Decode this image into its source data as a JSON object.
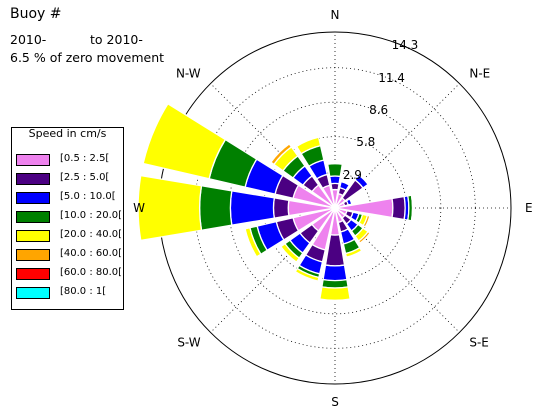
{
  "header": {
    "title": "Buoy #",
    "period_line": "2010-           to 2010-",
    "zero_movement": "6.5 % of zero movement"
  },
  "legend": {
    "title": "Speed in cm/s",
    "items": [
      {
        "label": "[0.5 : 2.5[",
        "color": "#ee82ee"
      },
      {
        "label": "[2.5 : 5.0[",
        "color": "#4b0082"
      },
      {
        "label": "[5.0 : 10.0[",
        "color": "#0000ff"
      },
      {
        "label": "[10.0 : 20.0[",
        "color": "#008000"
      },
      {
        "label": "[20.0 : 40.0[",
        "color": "#ffff00"
      },
      {
        "label": "[40.0 : 60.0[",
        "color": "#ffa500"
      },
      {
        "label": "[60.0 : 80.0[",
        "color": "#ff0000"
      },
      {
        "label": "[80.0 : 1[",
        "color": "#00ffff"
      }
    ]
  },
  "chart_data": {
    "type": "windrose",
    "rmax": 14.3,
    "radial_ticks": [
      2.9,
      5.8,
      8.6,
      11.4,
      14.3
    ],
    "radial_tick_labels": [
      "2.9",
      "5.8",
      "8.6",
      "11.4",
      "14.3"
    ],
    "direction_labels": [
      "N",
      "N-E",
      "E",
      "S-E",
      "S",
      "S-W",
      "W",
      "N-W"
    ],
    "sector_count": 16,
    "sector_directions_deg": [
      0,
      22.5,
      45,
      67.5,
      90,
      112.5,
      135,
      157.5,
      180,
      202.5,
      225,
      247.5,
      270,
      292.5,
      315,
      337.5
    ],
    "series": [
      {
        "name": "[0.5 : 2.5[",
        "values": [
          1.5,
          1.2,
          1.0,
          0.8,
          4.7,
          1.0,
          1.0,
          1.2,
          2.2,
          3.5,
          2.3,
          3.5,
          3.8,
          3.5,
          2.3,
          1.9
        ]
      },
      {
        "name": "[2.5 : 5.0[",
        "values": [
          0.5,
          0.5,
          1.8,
          0.3,
          1.0,
          0.5,
          0.6,
          0.8,
          2.5,
          1.0,
          1.2,
          1.4,
          1.2,
          1.5,
          0.9,
          0.9
        ]
      },
      {
        "name": "[5.0 : 10.0[",
        "values": [
          0.6,
          0.5,
          0.5,
          0.3,
          0.3,
          0.5,
          0.7,
          1.0,
          1.2,
          1.0,
          1.0,
          1.6,
          3.5,
          2.5,
          1.0,
          1.2
        ]
      },
      {
        "name": "[10.0 : 20.0[",
        "values": [
          1.0,
          0.0,
          0.0,
          0.0,
          0.3,
          0.3,
          0.5,
          0.8,
          0.6,
          0.3,
          0.5,
          0.6,
          2.5,
          3.0,
          1.0,
          1.2
        ]
      },
      {
        "name": "[20.0 : 40.0[",
        "values": [
          0.0,
          0.0,
          0.0,
          0.0,
          0.1,
          0.4,
          0.5,
          0.3,
          1.0,
          0.3,
          0.4,
          0.4,
          5.0,
          5.5,
          0.9,
          0.7
        ]
      },
      {
        "name": "[40.0 : 60.0[",
        "values": [
          0.0,
          0.0,
          0.0,
          0.0,
          0.0,
          0.2,
          0.2,
          0.0,
          0.0,
          0.0,
          0.0,
          0.0,
          0.0,
          0.0,
          0.3,
          0.0
        ]
      },
      {
        "name": "[60.0 : 80.0[",
        "values": [
          0,
          0,
          0,
          0,
          0,
          0,
          0,
          0,
          0,
          0,
          0,
          0,
          0,
          0,
          0,
          0
        ]
      },
      {
        "name": "[80.0 : 1[",
        "values": [
          0,
          0,
          0,
          0,
          0,
          0,
          0,
          0,
          0,
          0,
          0,
          0,
          0,
          0,
          0,
          0
        ]
      }
    ]
  }
}
